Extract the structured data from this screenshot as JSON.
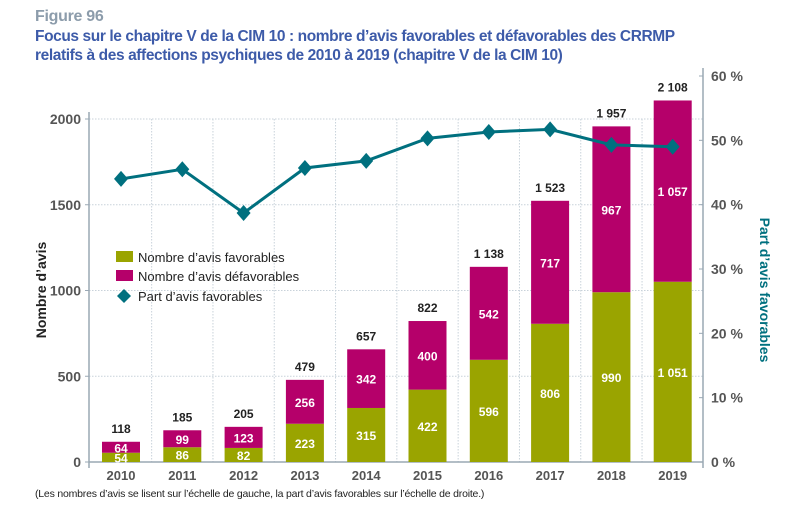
{
  "figure_label": "Figure 96",
  "title_line1": "Focus sur le chapitre V de la CIM 10 : nombre d’avis favorables et défavorables des CRRMP",
  "title_line2": "relatifs à des affections psychiques de 2010 à 2019 (chapitre V de la CIM 10)",
  "note": "(Les nombres d’avis se lisent sur l’échelle de gauche, la part d’avis favorables sur l’échelle de droite.)",
  "colors": {
    "favorable": "#9aa400",
    "defavorable": "#b5006a",
    "line": "#00707f",
    "title": "#3d5ba9"
  },
  "chart_data": {
    "type": "bar",
    "stacked": true,
    "categories": [
      "2010",
      "2011",
      "2012",
      "2013",
      "2014",
      "2015",
      "2016",
      "2017",
      "2018",
      "2019"
    ],
    "series": [
      {
        "name": "Nombre d’avis favorables",
        "type": "bar",
        "axis": "left",
        "values": [
          54,
          86,
          82,
          223,
          315,
          422,
          596,
          806,
          990,
          1051
        ],
        "labels": [
          "54",
          "86",
          "82",
          "223",
          "315",
          "422",
          "596",
          "806",
          "990",
          "1 051"
        ]
      },
      {
        "name": "Nombre d’avis défavorables",
        "type": "bar",
        "axis": "left",
        "values": [
          64,
          99,
          123,
          256,
          342,
          400,
          542,
          717,
          967,
          1057
        ],
        "labels": [
          "64",
          "99",
          "123",
          "256",
          "342",
          "400",
          "542",
          "717",
          "967",
          "1 057"
        ]
      },
      {
        "name": "Part d’avis favorables",
        "type": "line",
        "axis": "right",
        "marker": "diamond",
        "values": [
          44.0,
          45.5,
          38.7,
          45.7,
          46.8,
          50.3,
          51.3,
          51.7,
          49.3,
          49.0
        ]
      }
    ],
    "totals": [
      "118",
      "185",
      "205",
      "479",
      "657",
      "822",
      "1 138",
      "1 523",
      "1 957",
      "2 108"
    ],
    "ylabel": "Nombre d’avis",
    "y2label": "Part d’avis favorables",
    "ylim": [
      0,
      2000
    ],
    "yticks": [
      0,
      500,
      1000,
      1500,
      2000
    ],
    "ytick_labels": [
      "0",
      "500",
      "1000",
      "1500",
      "2000"
    ],
    "y2lim": [
      0,
      60
    ],
    "y2ticks": [
      0,
      10,
      20,
      30,
      40,
      50,
      60
    ],
    "y2tick_labels": [
      "0 %",
      "10 %",
      "20 %",
      "30 %",
      "40 %",
      "50 %",
      "60 %"
    ],
    "grid": true,
    "legend_position": "left-middle"
  }
}
